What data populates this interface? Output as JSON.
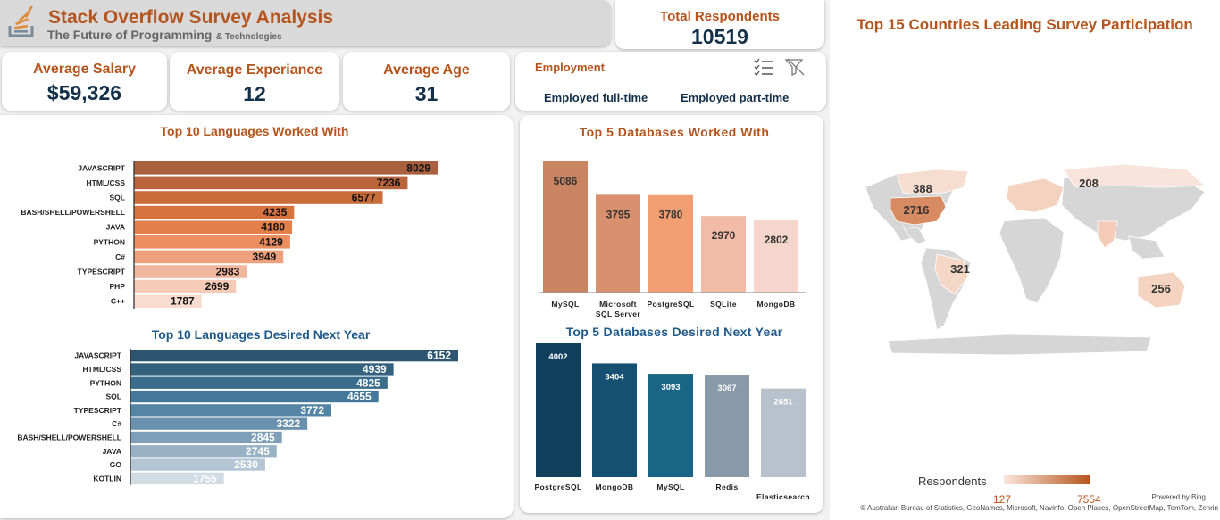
{
  "header": {
    "title": "Stack Overflow Survey Analysis",
    "subtitle_main": "The Future of Programming",
    "subtitle_small": "& Technologies",
    "logo_icon": "stack-overflow-logo-icon"
  },
  "kpis": {
    "total_label": "Total Respondents",
    "total_value": "10519",
    "salary_label": "Average Salary",
    "salary_value": "$59,326",
    "experience_label": "Average Experiance",
    "experience_value": "12",
    "age_label": "Average Age",
    "age_value": "31"
  },
  "slicer": {
    "title": "Employment",
    "items": [
      "Employed full-time",
      "Employed part-time"
    ],
    "multi_select_icon": "multi-select-icon",
    "clear_filter_icon": "clear-filter-icon"
  },
  "map": {
    "title": "Top 15 Countries Leading Survey Participation",
    "legend_title": "Respondents",
    "legend_min": "127",
    "legend_max": "7554",
    "powered_by": "Powered by Bing",
    "attribution": "© Australian Bureau of Statistics, GeoNames, Microsoft, Navinfo, Open Places, OpenStreetMap, TomTom, Zenrin",
    "labels": [
      "388",
      "208",
      "2716",
      "321",
      "256"
    ]
  },
  "chart_data": [
    {
      "id": "lang_worked",
      "type": "bar",
      "orientation": "horizontal",
      "title": "Top 10 Languages Worked With",
      "categories": [
        "JAVASCRIPT",
        "HTML/CSS",
        "SQL",
        "BASH/SHELL/POWERSHELL",
        "JAVA",
        "PYTHON",
        "C#",
        "TYPESCRIPT",
        "PHP",
        "C++"
      ],
      "values": [
        8029,
        7236,
        6577,
        4235,
        4180,
        4129,
        3949,
        2983,
        2699,
        1787
      ],
      "colors": [
        "#a8603e",
        "#b9643a",
        "#c86c3a",
        "#d9733d",
        "#e47f49",
        "#eb8f60",
        "#eda07b",
        "#f1b79c",
        "#f5cbb7",
        "#f8dccf"
      ]
    },
    {
      "id": "lang_desired",
      "type": "bar",
      "orientation": "horizontal",
      "title": "Top 10 Languages Desired Next Year",
      "categories": [
        "JAVASCRIPT",
        "HTML/CSS",
        "PYTHON",
        "SQL",
        "TYPESCRIPT",
        "C#",
        "BASH/SHELL/POWERSHELL",
        "JAVA",
        "GO",
        "KOTLIN"
      ],
      "values": [
        6152,
        4939,
        4825,
        4655,
        3772,
        3322,
        2845,
        2745,
        2530,
        1755
      ],
      "colors": [
        "#2e556f",
        "#33617e",
        "#3a6d8c",
        "#43789a",
        "#5585a5",
        "#6991ad",
        "#7e9fb7",
        "#98b1c5",
        "#b4c5d4",
        "#d1dbe4"
      ]
    },
    {
      "id": "db_worked",
      "type": "bar",
      "orientation": "vertical",
      "title": "Top 5 Databases Worked With",
      "categories": [
        "MySQL",
        "Microsoft SQL Server",
        "PostgreSQL",
        "SQLite",
        "MongoDB"
      ],
      "values": [
        5086,
        3795,
        3780,
        2970,
        2802
      ],
      "colors": [
        "#c98461",
        "#d9906e",
        "#f09e72",
        "#f2bba7",
        "#f6d6cc"
      ]
    },
    {
      "id": "db_desired",
      "type": "bar",
      "orientation": "vertical",
      "title": "Top 5 Databases Desired Next Year",
      "categories": [
        "PostgreSQL",
        "MongoDB",
        "MySQL",
        "Redis",
        "Elasticsearch"
      ],
      "values": [
        4002,
        3404,
        3093,
        3067,
        2651
      ],
      "colors": [
        "#0f3f5c",
        "#155072",
        "#196585",
        "#8899aa",
        "#b7c2cc"
      ]
    }
  ]
}
